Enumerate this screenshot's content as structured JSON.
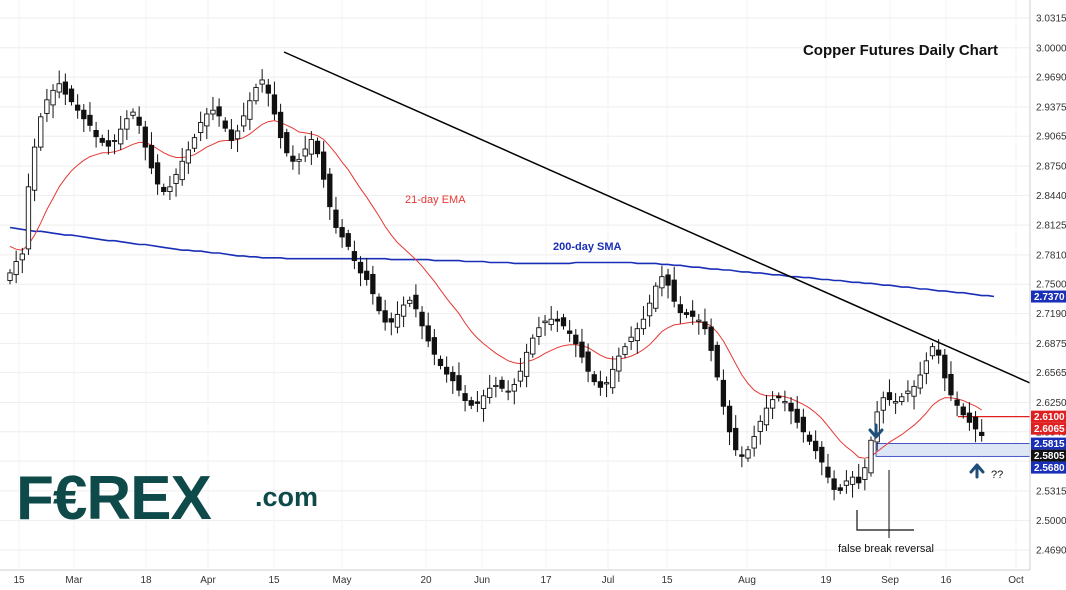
{
  "chart_data": {
    "type": "candlestick",
    "title": "Copper Futures Daily Chart",
    "ylim": [
      2.452,
      3.03
    ],
    "y_ticks": [
      "3.0315",
      "3.0000",
      "2.9690",
      "2.9375",
      "2.9065",
      "2.8750",
      "2.8440",
      "2.8125",
      "2.7810",
      "2.7500",
      "2.7190",
      "2.6875",
      "2.6565",
      "2.6250",
      "2.5940",
      "2.5630",
      "2.5315",
      "2.5000",
      "2.4690"
    ],
    "x_ticks": [
      "15",
      "Mar",
      "18",
      "Apr",
      "15",
      "May",
      "20",
      "Jun",
      "17",
      "Jul",
      "15",
      "Aug",
      "19",
      "Sep",
      "16",
      "Oct"
    ],
    "price_badges": [
      {
        "label": "2.7370",
        "value": 2.737,
        "color": "#1a2fb8"
      },
      {
        "label": "2.6100",
        "value": 2.61,
        "color": "#e02020"
      },
      {
        "label": "2.6065",
        "value": 2.6065,
        "color": "#e02020"
      },
      {
        "label": "2.5815",
        "value": 2.5815,
        "color": "#1a2fb8"
      },
      {
        "label": "2.5805",
        "value": 2.5805,
        "color": "#111111"
      },
      {
        "label": "2.5680",
        "value": 2.568,
        "color": "#1a2fb8"
      }
    ],
    "annotations": {
      "ema_label": "21-day EMA",
      "sma_label": "200-day SMA",
      "false_break": "false break reversal",
      "question": "??"
    },
    "support_zone": {
      "low": 2.568,
      "high": 2.5815
    },
    "resistance_line": 2.61,
    "colors": {
      "ema": "#e53935",
      "sma": "#1a2fb8",
      "trendline": "#000000",
      "zone": "#dde6f5",
      "arrow": "#1f4e79"
    },
    "closes": [
      2.762,
      2.774,
      2.782,
      2.853,
      2.895,
      2.927,
      2.945,
      2.955,
      2.962,
      2.951,
      2.943,
      2.934,
      2.925,
      2.918,
      2.906,
      2.9,
      2.896,
      2.902,
      2.914,
      2.925,
      2.932,
      2.918,
      2.895,
      2.873,
      2.856,
      2.848,
      2.853,
      2.866,
      2.88,
      2.892,
      2.905,
      2.921,
      2.93,
      2.934,
      2.928,
      2.915,
      2.902,
      2.912,
      2.928,
      2.944,
      2.958,
      2.966,
      2.952,
      2.93,
      2.905,
      2.889,
      2.88,
      2.882,
      2.893,
      2.903,
      2.888,
      2.861,
      2.832,
      2.81,
      2.8,
      2.79,
      2.775,
      2.762,
      2.755,
      2.74,
      2.722,
      2.71,
      2.71,
      2.718,
      2.728,
      2.733,
      2.724,
      2.706,
      2.69,
      2.676,
      2.664,
      2.655,
      2.648,
      2.638,
      2.627,
      2.622,
      2.624,
      2.632,
      2.64,
      2.643,
      2.64,
      2.637,
      2.644,
      2.658,
      2.678,
      2.693,
      2.704,
      2.711,
      2.713,
      2.711,
      2.706,
      2.698,
      2.687,
      2.673,
      2.658,
      2.647,
      2.641,
      2.646,
      2.66,
      2.674,
      2.684,
      2.694,
      2.703,
      2.713,
      2.73,
      2.748,
      2.758,
      2.749,
      2.732,
      2.72,
      2.718,
      2.716,
      2.712,
      2.703,
      2.68,
      2.652,
      2.621,
      2.594,
      2.575,
      2.568,
      2.575,
      2.589,
      2.605,
      2.619,
      2.628,
      2.63,
      2.626,
      2.616,
      2.604,
      2.594,
      2.584,
      2.574,
      2.562,
      2.546,
      2.533,
      2.532,
      2.542,
      2.546,
      2.54,
      2.556,
      2.585,
      2.615,
      2.63,
      2.628,
      2.626,
      2.631,
      2.637,
      2.642,
      2.654,
      2.669,
      2.684,
      2.675,
      2.651,
      2.633,
      2.622,
      2.612,
      2.604,
      2.597,
      2.59
    ],
    "emas": [
      2.79,
      2.787,
      2.786,
      2.792,
      2.802,
      2.815,
      2.829,
      2.841,
      2.853,
      2.862,
      2.87,
      2.876,
      2.881,
      2.885,
      2.887,
      2.889,
      2.889,
      2.89,
      2.892,
      2.895,
      2.898,
      2.9,
      2.9,
      2.897,
      2.893,
      2.889,
      2.886,
      2.884,
      2.884,
      2.885,
      2.887,
      2.891,
      2.895,
      2.898,
      2.901,
      2.902,
      2.902,
      2.903,
      2.905,
      2.909,
      2.914,
      2.919,
      2.922,
      2.923,
      2.921,
      2.918,
      2.915,
      2.911,
      2.91,
      2.909,
      2.907,
      2.903,
      2.896,
      2.888,
      2.879,
      2.871,
      2.861,
      2.851,
      2.842,
      2.832,
      2.822,
      2.811,
      2.802,
      2.794,
      2.788,
      2.782,
      2.776,
      2.769,
      2.761,
      2.753,
      2.744,
      2.735,
      2.727,
      2.719,
      2.709,
      2.7,
      2.693,
      2.687,
      2.682,
      2.677,
      2.673,
      2.669,
      2.667,
      2.666,
      2.668,
      2.67,
      2.673,
      2.677,
      2.68,
      2.683,
      2.685,
      2.686,
      2.686,
      2.685,
      2.683,
      2.679,
      2.675,
      2.672,
      2.671,
      2.671,
      2.672,
      2.674,
      2.677,
      2.681,
      2.686,
      2.693,
      2.7,
      2.704,
      2.707,
      2.708,
      2.709,
      2.71,
      2.71,
      2.709,
      2.706,
      2.699,
      2.69,
      2.678,
      2.666,
      2.654,
      2.645,
      2.638,
      2.634,
      2.632,
      2.632,
      2.632,
      2.631,
      2.629,
      2.626,
      2.623,
      2.619,
      2.614,
      2.608,
      2.6,
      2.592,
      2.584,
      2.578,
      2.573,
      2.567,
      2.566,
      2.568,
      2.573,
      2.578,
      2.583,
      2.587,
      2.591,
      2.596,
      2.601,
      2.607,
      2.614,
      2.622,
      2.627,
      2.63,
      2.63,
      2.629,
      2.627,
      2.624,
      2.621,
      2.617
    ],
    "smas": [
      2.81,
      2.809,
      2.808,
      2.807,
      2.806,
      2.806,
      2.805,
      2.804,
      2.803,
      2.802,
      2.802,
      2.801,
      2.8,
      2.799,
      2.798,
      2.797,
      2.796,
      2.796,
      2.795,
      2.794,
      2.793,
      2.792,
      2.792,
      2.791,
      2.79,
      2.789,
      2.788,
      2.787,
      2.786,
      2.786,
      2.785,
      2.785,
      2.784,
      2.783,
      2.783,
      2.782,
      2.781,
      2.78,
      2.78,
      2.779,
      2.779,
      2.778,
      2.778,
      2.778,
      2.778,
      2.777,
      2.777,
      2.777,
      2.777,
      2.777,
      2.777,
      2.777,
      2.777,
      2.777,
      2.777,
      2.777,
      2.777,
      2.777,
      2.777,
      2.777,
      2.777,
      2.777,
      2.776,
      2.776,
      2.776,
      2.776,
      2.776,
      2.776,
      2.776,
      2.775,
      2.775,
      2.775,
      2.775,
      2.775,
      2.774,
      2.774,
      2.774,
      2.774,
      2.773,
      2.773,
      2.773,
      2.773,
      2.772,
      2.772,
      2.772,
      2.772,
      2.772,
      2.772,
      2.772,
      2.772,
      2.772,
      2.772,
      2.773,
      2.773,
      2.773,
      2.773,
      2.773,
      2.773,
      2.773,
      2.773,
      2.773,
      2.773,
      2.772,
      2.772,
      2.772,
      2.772,
      2.771,
      2.771,
      2.77,
      2.77,
      2.769,
      2.768,
      2.768,
      2.767,
      2.766,
      2.766,
      2.765,
      2.765,
      2.764,
      2.763,
      2.763,
      2.762,
      2.762,
      2.761,
      2.76,
      2.76,
      2.759,
      2.758,
      2.758,
      2.757,
      2.757,
      2.756,
      2.755,
      2.755,
      2.754,
      2.754,
      2.753,
      2.752,
      2.752,
      2.751,
      2.751,
      2.75,
      2.749,
      2.749,
      2.748,
      2.747,
      2.747,
      2.746,
      2.745,
      2.745,
      2.744,
      2.743,
      2.743,
      2.742,
      2.741,
      2.741,
      2.74,
      2.739,
      2.738,
      2.738,
      2.737
    ]
  },
  "logo": {
    "brand": "F€REX",
    "suffix": ".com"
  }
}
